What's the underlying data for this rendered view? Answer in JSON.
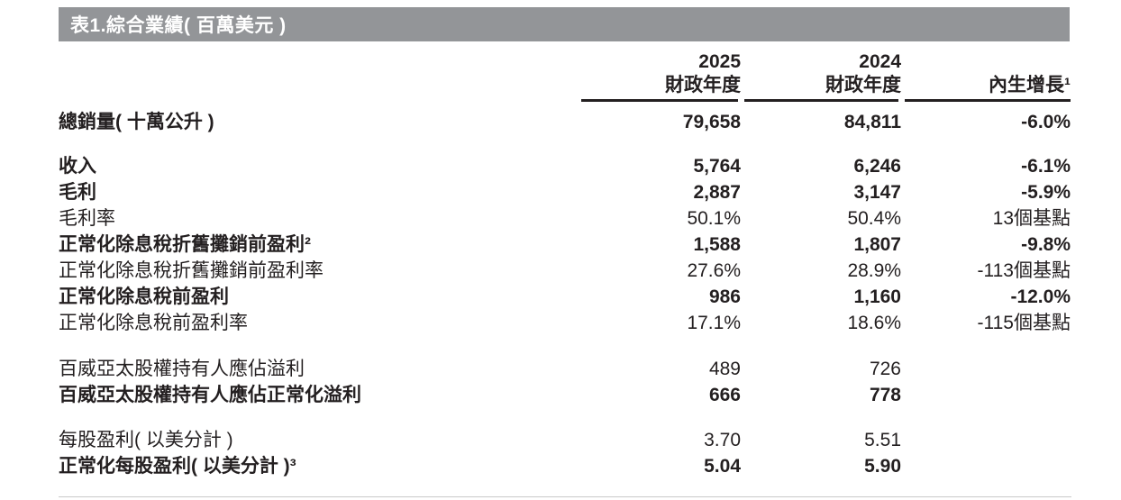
{
  "title": "表1.綜合業績( 百萬美元 )",
  "columns": {
    "fy2025_line1": "2025",
    "fy2025_line2": "財政年度",
    "fy2024_line1": "2024",
    "fy2024_line2": "財政年度",
    "organic_growth": "內生增長¹"
  },
  "rows": [
    {
      "label": "總銷量( 十萬公升 )",
      "v2025": "79,658",
      "v2024": "84,811",
      "organic": "-6.0%"
    },
    {
      "label": "收入",
      "v2025": "5,764",
      "v2024": "6,246",
      "organic": "-6.1%"
    },
    {
      "label": "毛利",
      "v2025": "2,887",
      "v2024": "3,147",
      "organic": "-5.9%"
    },
    {
      "label": "毛利率",
      "v2025": "50.1%",
      "v2024": "50.4%",
      "organic": "13個基點"
    },
    {
      "label": "正常化除息稅折舊攤銷前盈利²",
      "v2025": "1,588",
      "v2024": "1,807",
      "organic": "-9.8%"
    },
    {
      "label": "正常化除息稅折舊攤銷前盈利率",
      "v2025": "27.6%",
      "v2024": "28.9%",
      "organic": "-113個基點"
    },
    {
      "label": "正常化除息稅前盈利",
      "v2025": "986",
      "v2024": "1,160",
      "organic": "-12.0%"
    },
    {
      "label": "正常化除息稅前盈利率",
      "v2025": "17.1%",
      "v2024": "18.6%",
      "organic": "-115個基點"
    },
    {
      "label": "百威亞太股權持有人應佔溢利",
      "v2025": "489",
      "v2024": "726",
      "organic": ""
    },
    {
      "label": "百威亞太股權持有人應佔正常化溢利",
      "v2025": "666",
      "v2024": "778",
      "organic": ""
    },
    {
      "label": "每股盈利( 以美分計 )",
      "v2025": "3.70",
      "v2024": "5.51",
      "organic": ""
    },
    {
      "label": "正常化每股盈利( 以美分計 )³",
      "v2025": "5.04",
      "v2024": "5.90",
      "organic": ""
    }
  ],
  "colors": {
    "title_bar_background": "#939598",
    "title_text": "#ffffff",
    "body_text": "#231f20",
    "header_underline": "#231f20",
    "bottom_rule": "#c9c9c9"
  }
}
